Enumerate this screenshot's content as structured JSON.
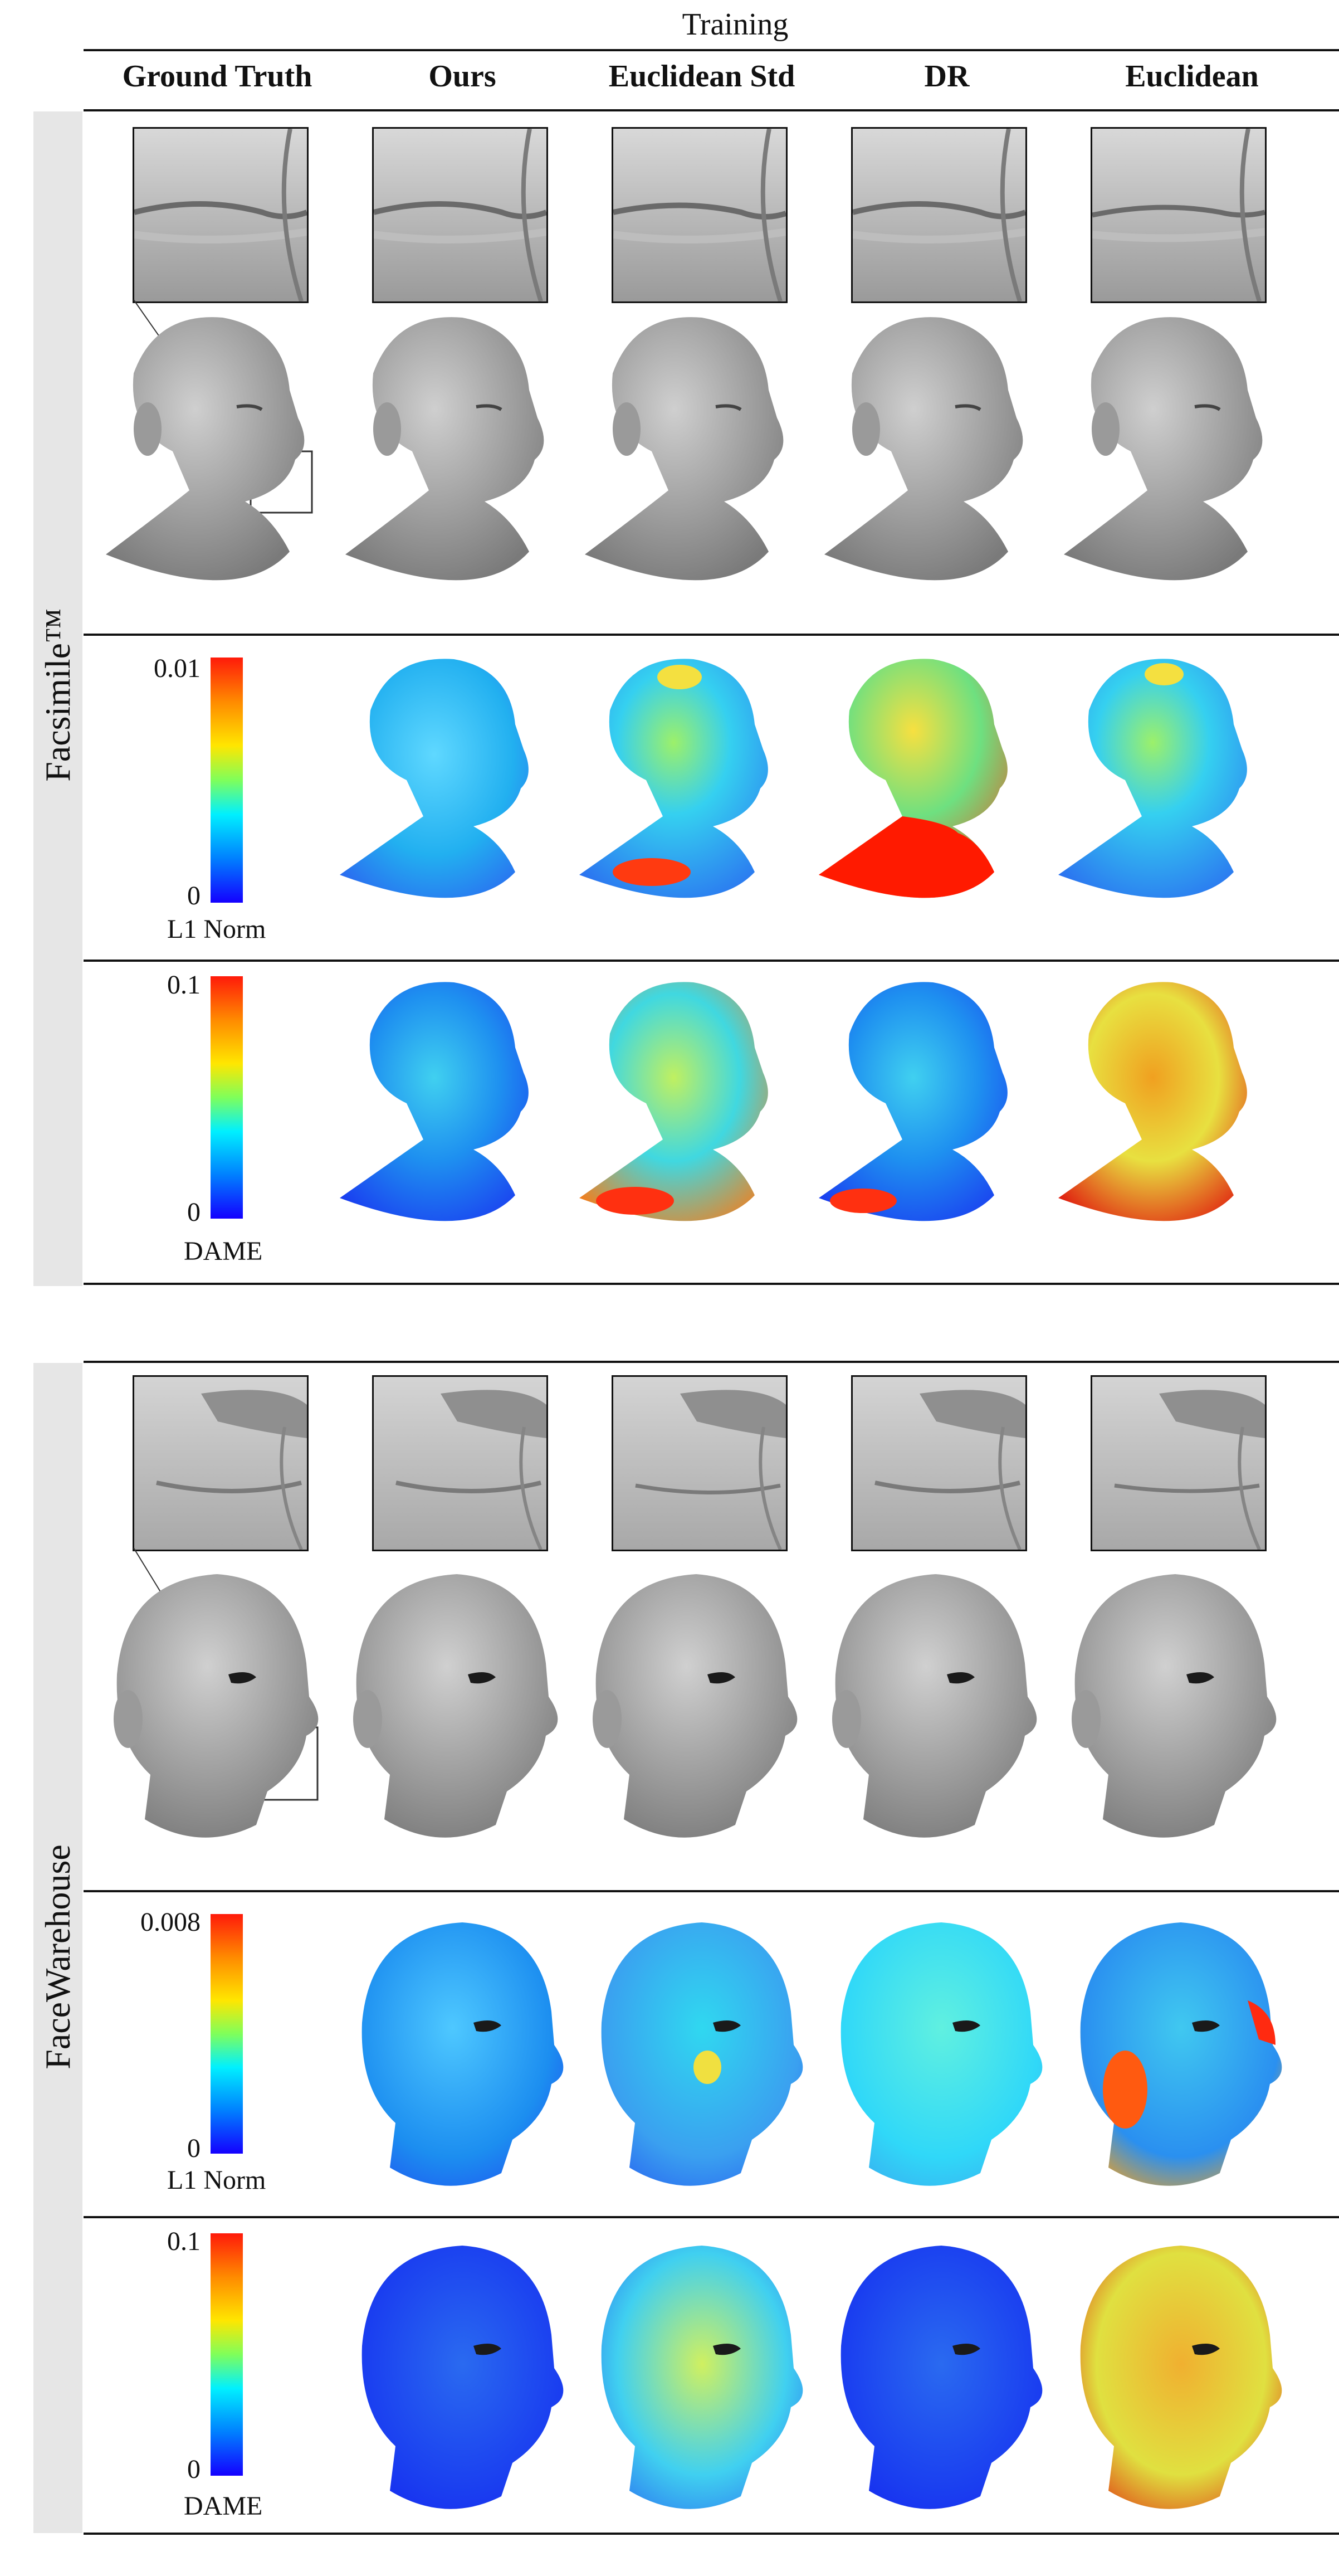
{
  "figure": {
    "top_label": "Training",
    "columns": [
      "Ground Truth",
      "Ours",
      "Euclidean Std",
      "DR",
      "Euclidean"
    ],
    "sections": [
      {
        "name": "Facsimile™",
        "rows": [
          {
            "kind": "geometry"
          },
          {
            "kind": "error",
            "colorbar": {
              "max": "0.01",
              "min": "0",
              "label": "L1 Norm"
            }
          },
          {
            "kind": "error",
            "colorbar": {
              "max": "0.1",
              "min": "0",
              "label": "DAME"
            }
          }
        ]
      },
      {
        "name": "FaceWarehouse",
        "rows": [
          {
            "kind": "geometry"
          },
          {
            "kind": "error",
            "colorbar": {
              "max": "0.008",
              "min": "0",
              "label": "L1 Norm"
            }
          },
          {
            "kind": "error",
            "colorbar": {
              "max": "0.1",
              "min": "0",
              "label": "DAME"
            }
          }
        ]
      }
    ]
  }
}
